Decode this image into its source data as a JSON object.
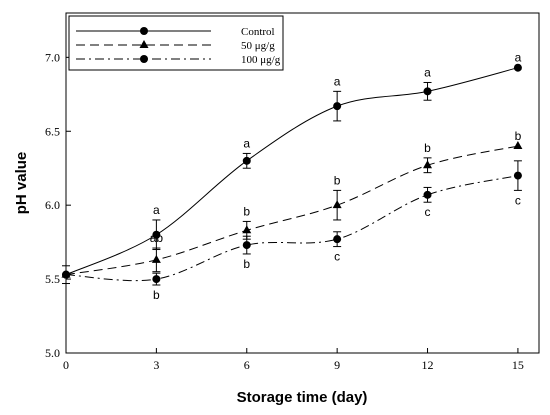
{
  "chart_data": {
    "type": "line",
    "title": "",
    "xlabel": "Storage time (day)",
    "ylabel": "pH value",
    "x": [
      0,
      3,
      6,
      9,
      12,
      15
    ],
    "xticks": [
      "0",
      "3",
      "6",
      "9",
      "12",
      "15"
    ],
    "yticks": [
      "5.0",
      "5.5",
      "6.0",
      "6.5",
      "7.0"
    ],
    "xlim": [
      0,
      15.7
    ],
    "ylim": [
      5.0,
      7.3
    ],
    "grid": false,
    "legend_position": "top-left",
    "series": [
      {
        "name": "Control",
        "marker": "circle",
        "line_style": "solid",
        "values": [
          5.53,
          5.8,
          6.3,
          6.67,
          6.77,
          6.93
        ],
        "errors": [
          0.06,
          0.1,
          0.05,
          0.1,
          0.06,
          0.0
        ],
        "sig_labels": [
          "",
          "a",
          "a",
          "a",
          "a",
          "a"
        ],
        "sig_positions": [
          "",
          "above",
          "above",
          "above",
          "above",
          "above"
        ]
      },
      {
        "name": "50 μg/g",
        "marker": "triangle",
        "line_style": "dashed",
        "values": [
          5.53,
          5.63,
          5.83,
          6.0,
          6.27,
          6.4
        ],
        "errors": [
          0.0,
          0.08,
          0.06,
          0.1,
          0.05,
          0.0
        ],
        "sig_labels": [
          "",
          "ab",
          "b",
          "b",
          "b",
          "b"
        ],
        "sig_positions": [
          "",
          "above",
          "above",
          "above",
          "above",
          "above"
        ]
      },
      {
        "name": "100 μg/g",
        "marker": "circle",
        "line_style": "dash-dot",
        "values": [
          5.53,
          5.5,
          5.73,
          5.77,
          6.07,
          6.2
        ],
        "errors": [
          0.0,
          0.04,
          0.06,
          0.05,
          0.05,
          0.1
        ],
        "sig_labels": [
          "",
          "b",
          "b",
          "c",
          "c",
          "c"
        ],
        "sig_positions": [
          "",
          "below",
          "below",
          "below",
          "below",
          "below"
        ]
      }
    ]
  }
}
